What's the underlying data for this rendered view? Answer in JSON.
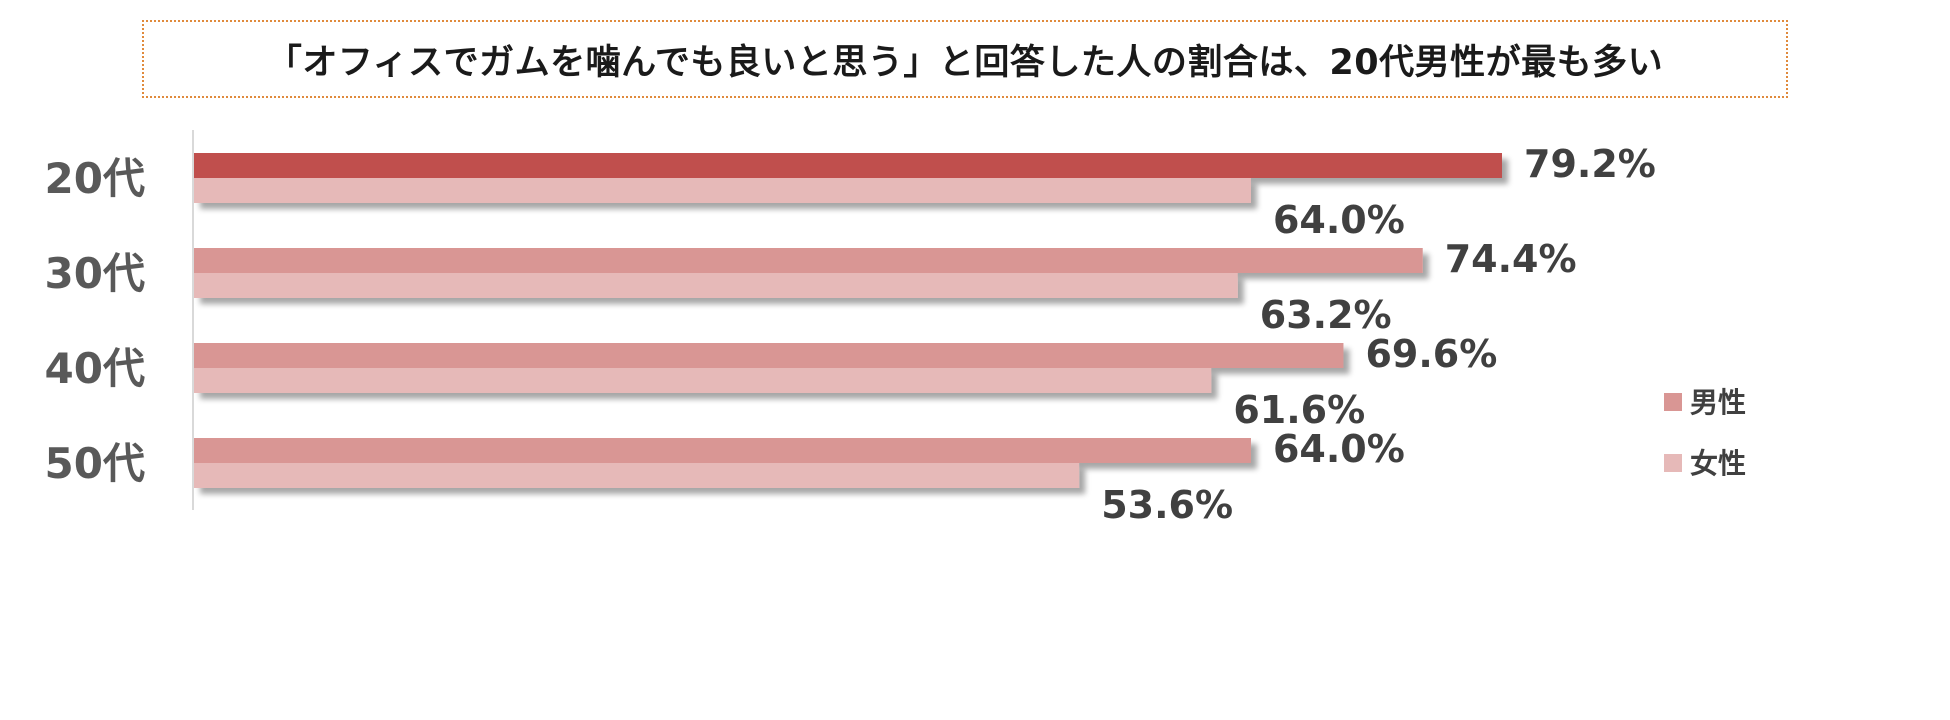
{
  "chart_data": {
    "type": "bar",
    "orientation": "horizontal",
    "title": "「オフィスでガムを噛んでも良いと思う」と回答した人の割合は、20代男性が最も多い",
    "categories": [
      "20代",
      "30代",
      "40代",
      "50代"
    ],
    "series": [
      {
        "name": "男性",
        "values": [
          79.2,
          74.4,
          69.6,
          64.0
        ],
        "labels": [
          "79.2%",
          "74.4%",
          "69.6%",
          "64.0%"
        ]
      },
      {
        "name": "女性",
        "values": [
          64.0,
          63.2,
          61.6,
          53.6
        ],
        "labels": [
          "64.0%",
          "63.2%",
          "61.6%",
          "53.6%"
        ]
      }
    ],
    "xlim": [
      0,
      100
    ],
    "grid": false,
    "legend_position": "right",
    "colors": {
      "male": "#d99694",
      "male_highlight": "#c0504d",
      "female": "#e6b9b8",
      "axis": "#d9d9d9"
    }
  }
}
